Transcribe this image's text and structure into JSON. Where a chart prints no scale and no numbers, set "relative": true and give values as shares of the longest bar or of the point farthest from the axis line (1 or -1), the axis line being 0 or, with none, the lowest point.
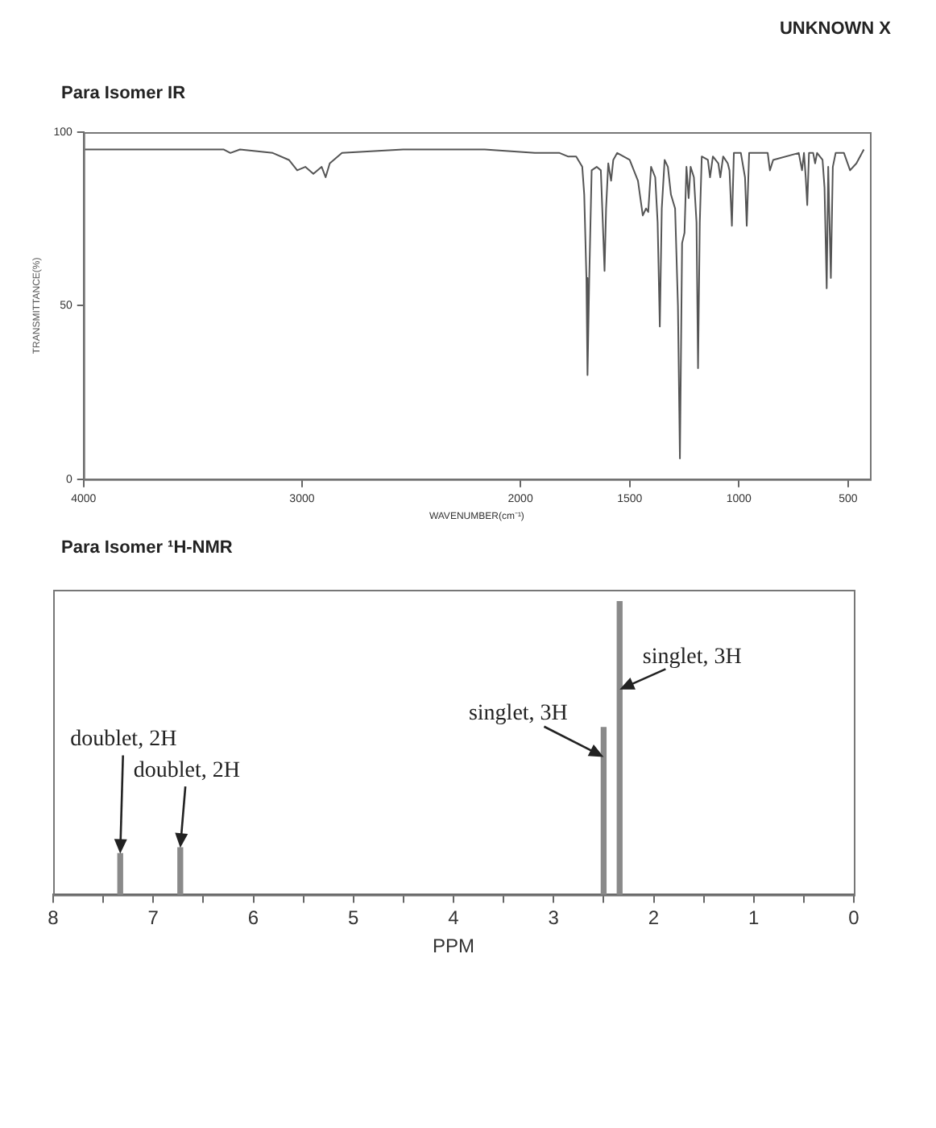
{
  "chart_data": [
    {
      "type": "line",
      "title": "Para Isomer IR",
      "xlabel": "WAVENUMBER(cm⁻¹)",
      "ylabel": "TRANSMITTANCE(%)",
      "annotations": [
        "UNKNOWN X"
      ],
      "color": "#555555",
      "xlim": [
        4000,
        400
      ],
      "ylim": [
        0,
        100
      ],
      "xticks": [
        4000,
        3000,
        2000,
        1500,
        1000,
        500
      ],
      "yticks": [
        0,
        50,
        100
      ],
      "x": [
        4000,
        3657,
        3358,
        3328,
        3284,
        3134,
        3060,
        3022,
        2985,
        2948,
        2910,
        2892,
        2873,
        2817,
        2537,
        2164,
        1934,
        1896,
        1821,
        1783,
        1745,
        1717,
        1708,
        1698,
        1693,
        1685,
        1674,
        1651,
        1632,
        1623,
        1615,
        1608,
        1598,
        1585,
        1575,
        1557,
        1500,
        1462,
        1440,
        1425,
        1415,
        1402,
        1383,
        1372,
        1362,
        1353,
        1340,
        1325,
        1311,
        1292,
        1279,
        1270,
        1260,
        1249,
        1240,
        1230,
        1221,
        1206,
        1194,
        1187,
        1179,
        1170,
        1142,
        1132,
        1119,
        1094,
        1085,
        1072,
        1051,
        1043,
        1032,
        1023,
        991,
        972,
        964,
        953,
        868,
        858,
        843,
        726,
        711,
        702,
        694,
        687,
        679,
        660,
        651,
        642,
        617,
        608,
        598,
        591,
        579,
        570,
        557,
        519,
        491,
        462,
        428
      ],
      "values": [
        95,
        95,
        95,
        94,
        95,
        94,
        92,
        89,
        90,
        88,
        90,
        87,
        91,
        94,
        95,
        95,
        94,
        94,
        94,
        93,
        93,
        90,
        82,
        58,
        30,
        58,
        89,
        90,
        89,
        74,
        60,
        78,
        91,
        86,
        92,
        94,
        92,
        86,
        76,
        78,
        77,
        90,
        87,
        74,
        44,
        78,
        92,
        90,
        82,
        78,
        50,
        6,
        68,
        71,
        90,
        81,
        90,
        87,
        74,
        32,
        74,
        93,
        92,
        87,
        93,
        91,
        87,
        93,
        91,
        89,
        73,
        94,
        94,
        87,
        73,
        94,
        94,
        89,
        92,
        94,
        89,
        94,
        87,
        79,
        94,
        94,
        91,
        94,
        92,
        84,
        55,
        90,
        58,
        90,
        94,
        94,
        89,
        91,
        95
      ]
    },
    {
      "type": "bar",
      "title": "Para Isomer ¹H-NMR",
      "xlabel": "PPM",
      "relative": true,
      "color": "#8a8a8a",
      "xlim": [
        8,
        0
      ],
      "xticks": [
        8,
        {
          "value": 7.5,
          "label": null
        },
        7,
        {
          "value": 6.5,
          "label": null
        },
        6,
        {
          "value": 5.5,
          "label": null
        },
        5,
        {
          "value": 4.5,
          "label": null
        },
        4,
        {
          "value": 3.5,
          "label": null
        },
        3,
        {
          "value": 2.5,
          "label": null
        },
        2,
        {
          "value": 1.5,
          "label": null
        },
        1,
        {
          "value": 0.5,
          "label": null
        },
        0
      ],
      "x": [
        7.33,
        6.73,
        2.5,
        2.34
      ],
      "values": [
        0.14,
        0.16,
        0.57,
        1
      ],
      "annotations": [
        {
          "text": "doublet, 2H",
          "x": 7.33,
          "y": 0.14
        },
        {
          "text": "doublet, 2H",
          "x": 6.73,
          "y": 0.16
        },
        {
          "text": "singlet, 3H",
          "x": 2.5,
          "y": 0.47
        },
        {
          "text": "singlet, 3H",
          "x": 2.34,
          "y": 0.7
        }
      ]
    }
  ]
}
